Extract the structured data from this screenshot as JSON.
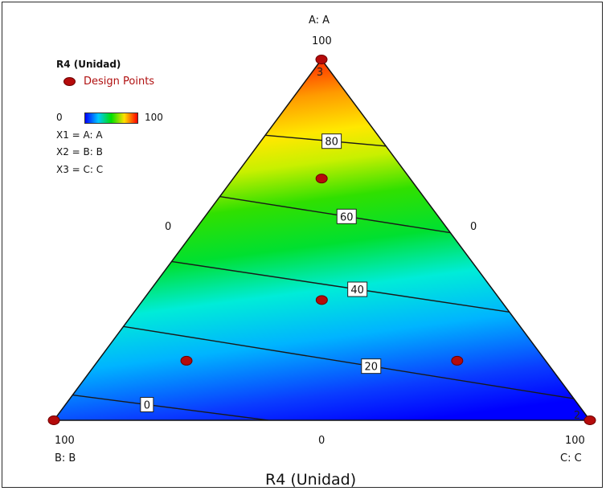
{
  "chart_data": {
    "type": "ternary-contour",
    "title": "",
    "xlabel": "R4 (Unidad)",
    "vertices": {
      "top": {
        "name": "A: A",
        "value_label": "100",
        "corner_tag": "3"
      },
      "bottom_left": {
        "name": "B: B",
        "value_label": "100"
      },
      "bottom_right": {
        "name": "C: C",
        "value_label": "100",
        "corner_tag": "2"
      }
    },
    "edge_labels": {
      "left": "0",
      "right": "0",
      "bottom": "0"
    },
    "legend": {
      "title": "R4 (Unidad)",
      "design_points_label": "Design Points",
      "colorbar_min": "0",
      "colorbar_max": "100",
      "factors": [
        "X1 = A: A",
        "X2 = B: B",
        "X3 = C: C"
      ]
    },
    "contours": [
      {
        "level": 0,
        "label": "0",
        "left": {
          "A": 7,
          "B": 93,
          "C": 0
        },
        "right": {
          "A": 0,
          "B": 60,
          "C": 40
        }
      },
      {
        "level": 20,
        "label": "20",
        "left": {
          "A": 26,
          "B": 74,
          "C": 0
        },
        "right": {
          "A": 6,
          "B": 0,
          "C": 94
        }
      },
      {
        "level": 40,
        "label": "40",
        "left": {
          "A": 44,
          "B": 56,
          "C": 0
        },
        "right": {
          "A": 30,
          "B": 0,
          "C": 70
        }
      },
      {
        "level": 60,
        "label": "60",
        "left": {
          "A": 62,
          "B": 38,
          "C": 0
        },
        "right": {
          "A": 52,
          "B": 0,
          "C": 48
        }
      },
      {
        "level": 80,
        "label": "80",
        "left": {
          "A": 79,
          "B": 21,
          "C": 0
        },
        "right": {
          "A": 76,
          "B": 0,
          "C": 24
        }
      }
    ],
    "design_points": [
      {
        "A": 100,
        "B": 0,
        "C": 0
      },
      {
        "A": 67,
        "B": 16.5,
        "C": 16.5
      },
      {
        "A": 33.3,
        "B": 33.3,
        "C": 33.3
      },
      {
        "A": 16.5,
        "B": 67,
        "C": 16.5
      },
      {
        "A": 16.5,
        "B": 16.5,
        "C": 67
      },
      {
        "A": 0,
        "B": 100,
        "C": 0
      },
      {
        "A": 0,
        "B": 0,
        "C": 100
      }
    ],
    "colors": {
      "low": "#0000ff",
      "mid": "#00e000",
      "high": "#ff0000",
      "point": "#b50b0b",
      "contour": "#1a1a1a"
    }
  }
}
